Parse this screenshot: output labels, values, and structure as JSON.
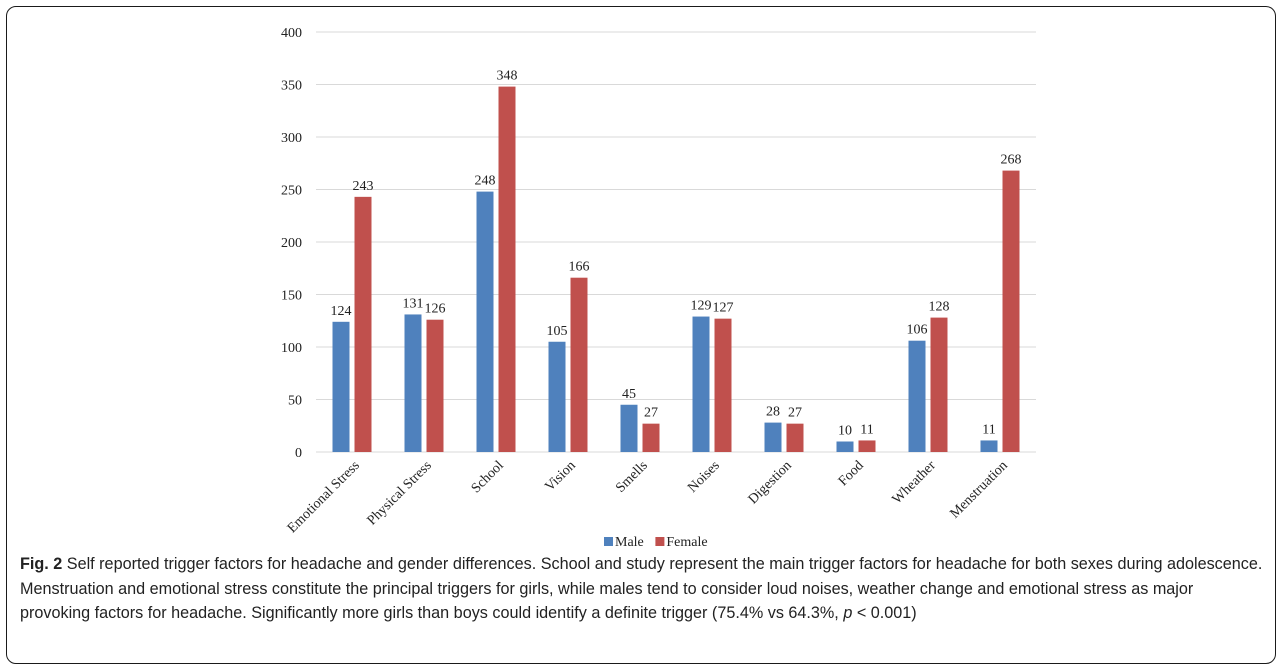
{
  "chart_data": {
    "type": "bar",
    "categories": [
      "Emotional Stress",
      "Physical Stress",
      "School",
      "Vision",
      "Smells",
      "Noises",
      "Digestion",
      "Food",
      "Wheather",
      "Menstruation"
    ],
    "series": [
      {
        "name": "Male",
        "color": "#4f81bd",
        "values": [
          124,
          131,
          248,
          105,
          45,
          129,
          28,
          10,
          106,
          11
        ]
      },
      {
        "name": "Female",
        "color": "#c0504d",
        "values": [
          243,
          126,
          348,
          166,
          27,
          127,
          27,
          11,
          128,
          268
        ]
      }
    ],
    "ylim": [
      0,
      400
    ],
    "yticks": [
      0,
      50,
      100,
      150,
      200,
      250,
      300,
      350,
      400
    ],
    "grid": true,
    "legend": "bottom",
    "data_labels": true
  },
  "caption": {
    "label": "Fig. 2",
    "text_before_p": " Self reported trigger factors for headache and gender differences. School and study represent the main trigger factors for headache for both sexes during adolescence. Menstruation and emotional stress constitute the principal triggers for girls, while males tend to consider loud noises, weather change and emotional stress as major provoking factors for headache. Significantly more girls than boys could identify a definite trigger (75.4% vs 64.3%, ",
    "p_symbol": "p",
    "text_after_p": " < 0.001)"
  }
}
